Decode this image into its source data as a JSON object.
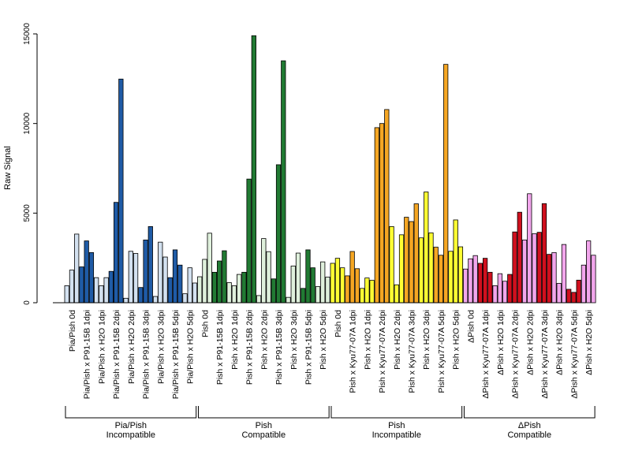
{
  "chart_data": {
    "type": "bar",
    "title": "",
    "xlabel": "",
    "ylabel": "Raw Signal",
    "ylim": [
      0,
      15000
    ],
    "yticks": [
      0,
      5000,
      10000,
      15000
    ],
    "grid": false,
    "categories": [
      {
        "label": "Pia/Pish 0d",
        "color": "#d3e1f0",
        "values": [
          950,
          1820,
          3830
        ]
      },
      {
        "label": "Pia/Pish x P91-15B 1dpi",
        "color": "#1f5ba6",
        "values": [
          2000,
          3450,
          2800
        ]
      },
      {
        "label": "Pia/Pish x H2O 1dpi",
        "color": "#d3e1f0",
        "values": [
          1400,
          950,
          1400
        ]
      },
      {
        "label": "Pia/Pish x P91-15B 2dpi",
        "color": "#1f5ba6",
        "values": [
          1750,
          5600,
          12480
        ]
      },
      {
        "label": "Pia/Pish x H2O 2dpi",
        "color": "#d3e1f0",
        "values": [
          250,
          2870,
          2750
        ]
      },
      {
        "label": "Pia/Pish x P91-15B 3dpi",
        "color": "#1f5ba6",
        "values": [
          850,
          3500,
          4250
        ]
      },
      {
        "label": "Pia/Pish x H2O 3dpi",
        "color": "#d3e1f0",
        "values": [
          350,
          3380,
          2550
        ]
      },
      {
        "label": "Pia/Pish x P91-15B 5dpi",
        "color": "#1f5ba6",
        "values": [
          1400,
          2950,
          2100
        ]
      },
      {
        "label": "Pia/Pish x H2O 5dpi",
        "color": "#d3e1f0",
        "values": [
          500,
          1950,
          1100
        ]
      },
      {
        "label": "Pish 0d",
        "color": "#dff0dc",
        "values": [
          1450,
          2420,
          3880
        ]
      },
      {
        "label": "Pish x P91-15B 1dpi",
        "color": "#217a33",
        "values": [
          1700,
          2330,
          2900
        ]
      },
      {
        "label": "Pish x H2O 1dpi",
        "color": "#dff0dc",
        "values": [
          1120,
          950,
          1580
        ]
      },
      {
        "label": "Pish x P91-15B 2dpi",
        "color": "#217a33",
        "values": [
          1700,
          6900,
          14900
        ]
      },
      {
        "label": "Pish x H2O 2dpi",
        "color": "#dff0dc",
        "values": [
          400,
          3580,
          2850
        ]
      },
      {
        "label": "Pish x P91-15B 3dpi",
        "color": "#217a33",
        "values": [
          1330,
          7700,
          13500
        ]
      },
      {
        "label": "Pish x H2O 3dpi",
        "color": "#dff0dc",
        "values": [
          300,
          2050,
          2770
        ]
      },
      {
        "label": "Pish x P91-15B 5dpi",
        "color": "#217a33",
        "values": [
          800,
          2950,
          1950
        ]
      },
      {
        "label": "Pish x H2O 5dpi",
        "color": "#dff0dc",
        "values": [
          900,
          2280,
          1430
        ]
      },
      {
        "label": "Pish 0d",
        "color": "#ffff33",
        "values": [
          2200,
          2480,
          1950
        ]
      },
      {
        "label": "Pish x Kyu77-07A 1dpi",
        "color": "#f5a623",
        "values": [
          1500,
          2860,
          1900
        ]
      },
      {
        "label": "Pish x H2O 1dpi",
        "color": "#ffff33",
        "values": [
          800,
          1380,
          1250
        ]
      },
      {
        "label": "Pish x Kyu77-07A 2dpi",
        "color": "#f5a623",
        "values": [
          9770,
          10000,
          10780
        ]
      },
      {
        "label": "Pish x H2O 2dpi",
        "color": "#ffff33",
        "values": [
          4250,
          1000,
          3790
        ]
      },
      {
        "label": "Pish x Kyu77-07A 3dpi",
        "color": "#f5a623",
        "values": [
          4770,
          4530,
          5520
        ]
      },
      {
        "label": "Pish x H2O 3dpi",
        "color": "#ffff33",
        "values": [
          3620,
          6180,
          3900
        ]
      },
      {
        "label": "Pish x Kyu77-07A 5dpi",
        "color": "#f5a623",
        "values": [
          3100,
          2650,
          13300
        ]
      },
      {
        "label": "Pish x H2O 5dpi",
        "color": "#ffff33",
        "values": [
          2870,
          4620,
          3120
        ]
      },
      {
        "label": "ΔPish 0d",
        "color": "#f2a6ec",
        "values": [
          1880,
          2450,
          2630
        ]
      },
      {
        "label": "ΔPish x Kyu77-07A 1dpi",
        "color": "#d0101e",
        "values": [
          2200,
          2480,
          1700
        ]
      },
      {
        "label": "ΔPish x H2O 1dpi",
        "color": "#f2a6ec",
        "values": [
          950,
          1620,
          1200
        ]
      },
      {
        "label": "ΔPish x Kyu77-07A 2dpi",
        "color": "#d0101e",
        "values": [
          1580,
          3950,
          5050
        ]
      },
      {
        "label": "ΔPish x H2O 2dpi",
        "color": "#f2a6ec",
        "values": [
          3500,
          6080,
          3850
        ]
      },
      {
        "label": "ΔPish x Kyu77-07A 3dpi",
        "color": "#d0101e",
        "values": [
          3930,
          5530,
          2700
        ]
      },
      {
        "label": "ΔPish x H2O 3dpi",
        "color": "#f2a6ec",
        "values": [
          2800,
          1080,
          3250
        ]
      },
      {
        "label": "ΔPish x Kyu77-07A 5dpi",
        "color": "#d0101e",
        "values": [
          750,
          580,
          1260
        ]
      },
      {
        "label": "ΔPish x H2O 5dpi",
        "color": "#f2a6ec",
        "values": [
          2100,
          3450,
          2650
        ]
      }
    ],
    "groups": [
      {
        "line1": "Pia/Pish",
        "line2": "Incompatible",
        "from": 0,
        "to": 8
      },
      {
        "line1": "Pish",
        "line2": "Compatible",
        "from": 9,
        "to": 17
      },
      {
        "line1": "Pish",
        "line2": "Incompatible",
        "from": 18,
        "to": 26
      },
      {
        "line1": "ΔPish",
        "line2": "Compatible",
        "from": 27,
        "to": 35
      }
    ]
  }
}
